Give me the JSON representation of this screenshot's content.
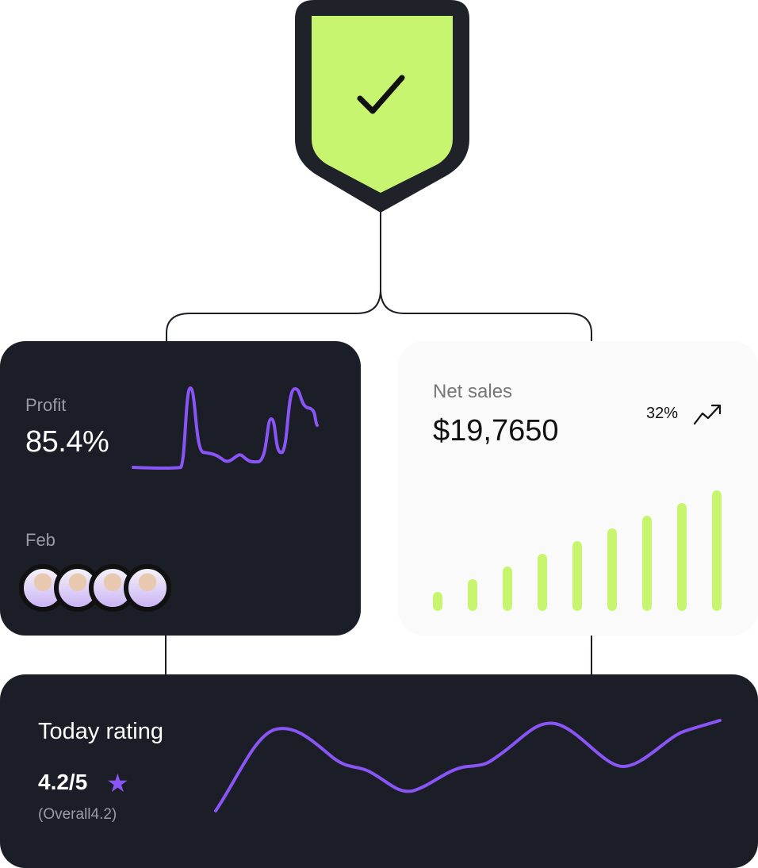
{
  "colors": {
    "dark": "#1b1e26",
    "accent_purple": "#7c4dff",
    "accent_lime": "#c8f56f",
    "light_card": "#fafafa"
  },
  "shield": {
    "icon": "check-icon"
  },
  "profit": {
    "label": "Profit",
    "value": "85.4%",
    "month": "Feb",
    "avatars": [
      "avatar-1",
      "avatar-2",
      "avatar-3",
      "avatar-4"
    ]
  },
  "net_sales": {
    "label": "Net sales",
    "value": "$19,7650",
    "change": "32%",
    "trend_icon": "trending-up-icon",
    "chart_data": {
      "type": "bar",
      "values": [
        1,
        2,
        3,
        4,
        5,
        6,
        7,
        8,
        9
      ],
      "color": "#c8f56f"
    }
  },
  "rating": {
    "title": "Today rating",
    "value": "4.2/5",
    "overall": "(Overall4.2)",
    "star_icon": "star-icon"
  }
}
